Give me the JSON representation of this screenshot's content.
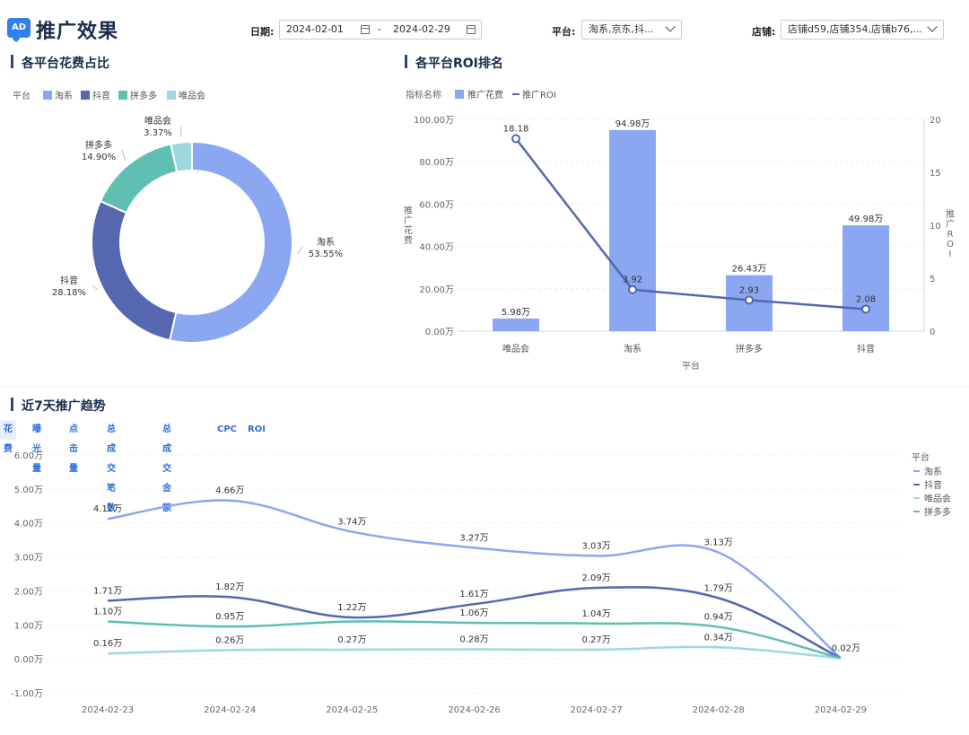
{
  "header": {
    "logo_text": "AD",
    "title": "推广效果",
    "date_label": "日期:",
    "date_start": "2024-02-01",
    "date_sep": "-",
    "date_end": "2024-02-29",
    "platform_label": "平台:",
    "platform_value": "淘系,京东,抖...",
    "store_label": "店铺:",
    "store_value": "店铺d59,店铺354,店铺b76,..."
  },
  "sections": {
    "pie_title": "各平台花费占比",
    "roi_title": "各平台ROI排名",
    "trend_title": "近7天推广趋势"
  },
  "tabs": [
    "花费",
    "曝光量",
    "点击量",
    "总成交笔数",
    "总成交金额",
    "CPC",
    "ROI"
  ],
  "active_tab": "花费",
  "colors": {
    "taoxi": "#8ba7f2",
    "douyin": "#5567b0",
    "pinduoduo": "#5fbfb3",
    "vip": "#9fd8dc",
    "accent": "#2f80ed"
  },
  "chart_data": [
    {
      "type": "pie",
      "style": "donut",
      "legend_title": "平台",
      "legend": [
        "淘系",
        "抖音",
        "拼多多",
        "唯品会"
      ],
      "slices": [
        {
          "name": "淘系",
          "value": 53.55,
          "label": "53.55%"
        },
        {
          "name": "抖音",
          "value": 28.18,
          "label": "28.18%"
        },
        {
          "name": "拼多多",
          "value": 14.9,
          "label": "14.90%"
        },
        {
          "name": "唯品会",
          "value": 3.37,
          "label": "3.37%"
        }
      ]
    },
    {
      "type": "bar",
      "combo": "bar+line",
      "legend_title": "指标名称",
      "categories": [
        "唯品会",
        "淘系",
        "拼多多",
        "抖音"
      ],
      "xlabel": "平台",
      "ylabel": "推广花费",
      "y2label": "推广ROI",
      "ylim": [
        0,
        100
      ],
      "y_ticks": [
        "0.00万",
        "20.00万",
        "40.00万",
        "60.00万",
        "80.00万",
        "100.00万"
      ],
      "y2lim": [
        0,
        20
      ],
      "y2_ticks": [
        "0",
        "5",
        "10",
        "15",
        "20"
      ],
      "series": [
        {
          "name": "推广花费",
          "type": "bar",
          "values": [
            5.98,
            94.98,
            26.43,
            49.98
          ],
          "labels": [
            "5.98万",
            "94.98万",
            "26.43万",
            "49.98万"
          ]
        },
        {
          "name": "推广ROI",
          "type": "line",
          "axis": "right",
          "values": [
            18.18,
            3.92,
            2.93,
            2.08
          ],
          "labels": [
            "18.18",
            "3.92",
            "2.93",
            "2.08"
          ]
        }
      ]
    },
    {
      "type": "line",
      "smooth": true,
      "legend_title": "平台",
      "legend_position": "right",
      "x": [
        "2024-02-23",
        "2024-02-24",
        "2024-02-25",
        "2024-02-26",
        "2024-02-27",
        "2024-02-28",
        "2024-02-29"
      ],
      "ylim": [
        -1,
        6
      ],
      "y_ticks": [
        "-1.00万",
        "0.00万",
        "1.00万",
        "2.00万",
        "3.00万",
        "4.00万",
        "5.00万",
        "6.00万"
      ],
      "series": [
        {
          "name": "淘系",
          "values": [
            4.12,
            4.66,
            3.74,
            3.27,
            3.03,
            3.13,
            0.02
          ],
          "labels": [
            "4.12万",
            "4.66万",
            "3.74万",
            "3.27万",
            "3.03万",
            "3.13万",
            "0.02万"
          ]
        },
        {
          "name": "抖音",
          "values": [
            1.71,
            1.82,
            1.22,
            1.61,
            2.09,
            1.79,
            0.02
          ],
          "labels": [
            "1.71万",
            "1.82万",
            "1.22万",
            "1.61万",
            "2.09万",
            "1.79万",
            ""
          ]
        },
        {
          "name": "唯品会",
          "values": [
            0.16,
            0.26,
            0.27,
            0.28,
            0.27,
            0.34,
            0.02
          ],
          "labels": [
            "0.16万",
            "0.26万",
            "0.27万",
            "0.28万",
            "0.27万",
            "0.34万",
            ""
          ]
        },
        {
          "name": "拼多多",
          "values": [
            1.1,
            0.95,
            1.1,
            1.06,
            1.04,
            0.94,
            0.02
          ],
          "labels": [
            "1.10万",
            "0.95万",
            "",
            "1.06万",
            "1.04万",
            "0.94万",
            ""
          ]
        }
      ]
    }
  ]
}
